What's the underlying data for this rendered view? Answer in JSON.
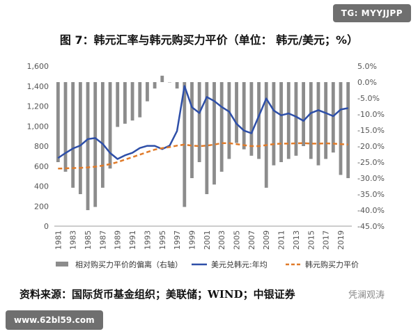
{
  "badge_top": "TG: MYYJJPP",
  "badge_bottom": "www.62bl59.com",
  "watermark": "凭澜观涛",
  "source": "资料来源：国际货币基金组织；美联储；WIND；中银证券",
  "chart_data": {
    "type": "bar+line",
    "title": "图 7：韩元汇率与韩元购买力平价（单位：  韩元/美元；%）",
    "x": [
      1981,
      1982,
      1983,
      1984,
      1985,
      1986,
      1987,
      1988,
      1989,
      1990,
      1991,
      1992,
      1993,
      1994,
      1995,
      1996,
      1997,
      1998,
      1999,
      2000,
      2001,
      2002,
      2003,
      2004,
      2005,
      2006,
      2007,
      2008,
      2009,
      2010,
      2011,
      2012,
      2013,
      2014,
      2015,
      2016,
      2017,
      2018,
      2019,
      2020
    ],
    "xticks": [
      "1981",
      "1983",
      "1985",
      "1987",
      "1989",
      "1991",
      "1993",
      "1995",
      "1997",
      "1999",
      "2001",
      "2003",
      "2005",
      "2007",
      "2009",
      "2011",
      "2013",
      "2015",
      "2017",
      "2019"
    ],
    "left_axis": {
      "ylim": [
        0,
        1600
      ],
      "ticks": [
        "0",
        "200",
        "400",
        "600",
        "800",
        "1,000",
        "1,200",
        "1,400",
        "1,600"
      ]
    },
    "right_axis": {
      "ylim": [
        -45,
        5
      ],
      "ticks": [
        "5.0%",
        "0.0%",
        "-5.0%",
        "-10.0%",
        "-15.0%",
        "-20.0%",
        "-25.0%",
        "-30.0%",
        "-35.0%",
        "-40.0%",
        "-45.0%"
      ]
    },
    "series": [
      {
        "name": "相对购买力平价的偏离（右轴）",
        "kind": "bar",
        "axis": "right",
        "color": "#8c8c8c",
        "values": [
          -25,
          -28,
          -33,
          -35,
          -40,
          -39,
          -33,
          -27,
          -14,
          -13,
          -12,
          -11,
          -6,
          -2,
          2,
          0,
          -2,
          -39,
          -30,
          -25,
          -35,
          -32,
          -28,
          -24,
          -19,
          -21,
          -23,
          -24,
          -33,
          -26,
          -25,
          -24,
          -23,
          -20,
          -24,
          -26,
          -24,
          -22,
          -29,
          -30
        ]
      },
      {
        "name": "美元兑韩元:年均",
        "kind": "line",
        "axis": "left",
        "color": "#2e4fa8",
        "values": [
          681,
          731,
          776,
          806,
          870,
          881,
          823,
          731,
          671,
          708,
          733,
          781,
          803,
          803,
          771,
          805,
          951,
          1401,
          1189,
          1131,
          1291,
          1251,
          1192,
          1145,
          1024,
          955,
          929,
          1102,
          1276,
          1156,
          1108,
          1127,
          1095,
          1053,
          1131,
          1160,
          1131,
          1100,
          1166,
          1180
        ]
      },
      {
        "name": "韩元购买力平价",
        "kind": "line-dashed",
        "axis": "left",
        "color": "#e07b2a",
        "values": [
          575,
          578,
          580,
          583,
          587,
          595,
          605,
          620,
          640,
          665,
          690,
          715,
          740,
          765,
          780,
          790,
          805,
          815,
          805,
          800,
          805,
          815,
          830,
          830,
          820,
          810,
          800,
          800,
          810,
          820,
          825,
          825,
          828,
          830,
          825,
          825,
          828,
          825,
          820,
          815
        ]
      }
    ],
    "legend_position": "bottom",
    "grid": false
  }
}
